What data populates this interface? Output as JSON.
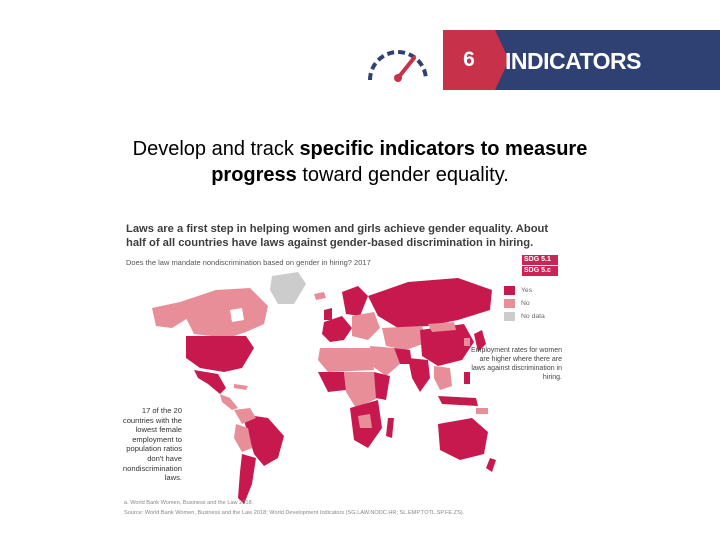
{
  "banner": {
    "number": "6",
    "label": "INDICATORS"
  },
  "headline": {
    "part1": "Develop and track ",
    "bold1": "specific indicators to measure",
    "bold2": "progress",
    "part2": " toward gender equality."
  },
  "figure": {
    "title": "Laws are a first step in helping women and girls achieve gender equality. About half of all countries have laws against gender-based discrimination in hiring.",
    "subtitle": "Does the law mandate nondiscrimination based on gender in hiring? 2017",
    "sdg_tags": [
      "SDG 5.1",
      "SDG 5.c"
    ],
    "legend": [
      {
        "label": "Yes",
        "color": "#c8194f"
      },
      {
        "label": "No",
        "color": "#e88e99"
      },
      {
        "label": "No data",
        "color": "#cccccc"
      }
    ],
    "note_right": "Employment rates for women are higher where there are laws against discrimination in hiring.",
    "note_left": "17 of the 20 countries with the lowest female employment to population ratios don't have nondiscrimination laws.",
    "footnotes": [
      "a. World Bank Women, Business and the Law 2018.",
      "Source: World Bank Women, Business and the Law 2018; World Development Indicators (SG.LAW.NODC.HR; SL.EMP.TOTL.SP.FE.ZS)."
    ]
  },
  "colors": {
    "yes": "#c8194f",
    "no": "#e88e99",
    "nodata": "#cccccc",
    "banner": "#2f4072",
    "accent": "#c8314a"
  },
  "icons": {
    "gauge": "speedometer-icon"
  }
}
